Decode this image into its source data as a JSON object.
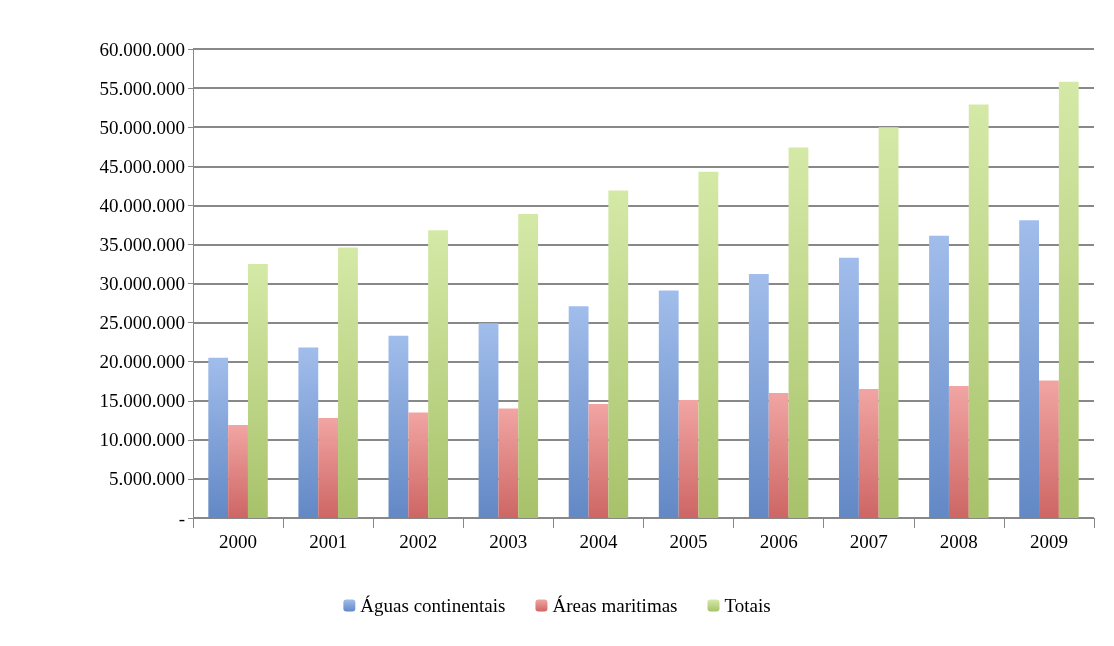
{
  "chart_data": {
    "type": "bar",
    "categories": [
      "2000",
      "2001",
      "2002",
      "2003",
      "2004",
      "2005",
      "2006",
      "2007",
      "2008",
      "2009"
    ],
    "series": [
      {
        "name": "Águas continentais",
        "color": "#6f9ae0",
        "values": [
          20500000,
          21800000,
          23300000,
          24900000,
          27100000,
          29100000,
          31200000,
          33300000,
          36100000,
          38100000
        ]
      },
      {
        "name": "Áreas maritimas",
        "color": "#e97472",
        "values": [
          11900000,
          12800000,
          13500000,
          14000000,
          14600000,
          15100000,
          16000000,
          16500000,
          16900000,
          17600000
        ]
      },
      {
        "name": "Totais",
        "color": "#bedd78",
        "values": [
          32500000,
          34600000,
          36800000,
          38900000,
          41900000,
          44300000,
          47400000,
          50000000,
          52900000,
          55800000
        ]
      }
    ],
    "ylim": [
      0,
      60000000
    ],
    "yticks": [
      {
        "value": 0,
        "label": "-"
      },
      {
        "value": 5000000,
        "label": "5.000.000"
      },
      {
        "value": 10000000,
        "label": "10.000.000"
      },
      {
        "value": 15000000,
        "label": "15.000.000"
      },
      {
        "value": 20000000,
        "label": "20.000.000"
      },
      {
        "value": 25000000,
        "label": "25.000.000"
      },
      {
        "value": 30000000,
        "label": "30.000.000"
      },
      {
        "value": 35000000,
        "label": "35.000.000"
      },
      {
        "value": 40000000,
        "label": "40.000.000"
      },
      {
        "value": 45000000,
        "label": "45.000.000"
      },
      {
        "value": 50000000,
        "label": "50.000.000"
      },
      {
        "value": 55000000,
        "label": "55.000.000"
      },
      {
        "value": 60000000,
        "label": "60.000.000"
      }
    ],
    "grid": "y",
    "legend": "bottom"
  }
}
